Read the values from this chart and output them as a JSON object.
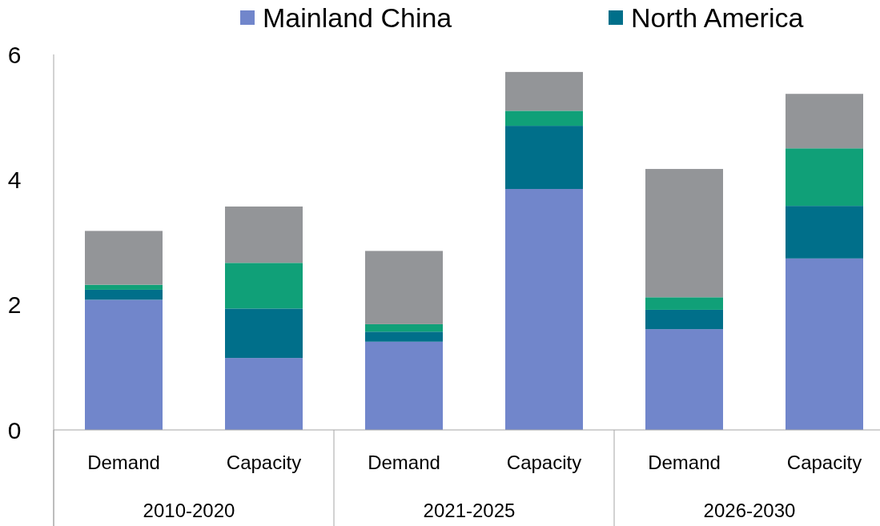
{
  "chart_data": {
    "type": "bar",
    "stacked": true,
    "categories": [
      "Demand",
      "Capacity",
      "Demand",
      "Capacity",
      "Demand",
      "Capacity"
    ],
    "annotations": [
      "2010-2020",
      "2021-2025",
      "2026-2030"
    ],
    "series": [
      {
        "name": "Mainland China",
        "color": "#7186cb",
        "values": [
          2.08,
          1.15,
          1.41,
          3.85,
          1.61,
          2.74
        ]
      },
      {
        "name": "North America",
        "color": "#006f8a",
        "values": [
          0.16,
          0.79,
          0.16,
          1.01,
          0.31,
          0.84
        ]
      },
      {
        "color": "#10a078",
        "values": [
          0.08,
          0.73,
          0.12,
          0.24,
          0.2,
          0.92
        ]
      },
      {
        "color": "#939598",
        "values": [
          0.86,
          0.9,
          1.17,
          0.62,
          2.05,
          0.87
        ]
      }
    ],
    "ylim": [
      0,
      6
    ],
    "yticks": [
      0,
      2,
      4,
      6
    ],
    "grid": false,
    "legend": "top"
  }
}
